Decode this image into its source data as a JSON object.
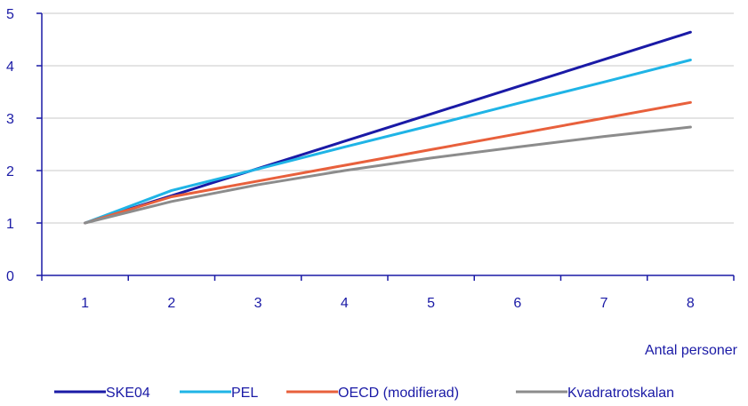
{
  "chart_data": {
    "type": "line",
    "title": "",
    "xlabel": "Antal personer",
    "ylabel": "",
    "x": [
      1,
      2,
      3,
      4,
      5,
      6,
      7,
      8
    ],
    "xlim": [
      0.5,
      8.5
    ],
    "ylim": [
      0,
      5
    ],
    "yticks": [
      0,
      1,
      2,
      3,
      4,
      5
    ],
    "grid": true,
    "legend_position": "bottom",
    "axis_color": "#1a1aa6",
    "grid_color": "#c8c8c8",
    "series": [
      {
        "name": "SKE04",
        "color": "#1a1aa6",
        "values": [
          1.0,
          1.52,
          2.04,
          2.56,
          3.08,
          3.6,
          4.12,
          4.64
        ]
      },
      {
        "name": "PEL",
        "color": "#1fb4e6",
        "values": [
          1.0,
          1.62,
          2.03,
          2.45,
          2.86,
          3.28,
          3.69,
          4.11
        ]
      },
      {
        "name": "OECD (modifierad)",
        "color": "#e8603c",
        "values": [
          1.0,
          1.5,
          1.8,
          2.1,
          2.4,
          2.7,
          3.0,
          3.3
        ]
      },
      {
        "name": "Kvadratrotskalan",
        "color": "#8c8c8c",
        "values": [
          1.0,
          1.41,
          1.73,
          2.0,
          2.24,
          2.45,
          2.65,
          2.83
        ]
      }
    ]
  }
}
